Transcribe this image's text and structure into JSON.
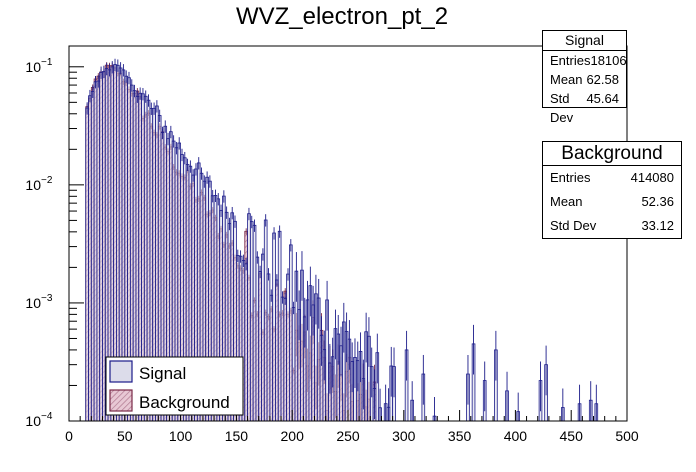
{
  "chart_data": {
    "type": "histogram",
    "title": "WVZ_electron_pt_2",
    "xlabel": "",
    "ylabel": "",
    "xlim": [
      0,
      500
    ],
    "ylim": [
      0.0001,
      0.15
    ],
    "yscale": "log",
    "x_ticks": [
      0,
      50,
      100,
      150,
      200,
      250,
      300,
      350,
      400,
      450,
      500
    ],
    "x_tick_labels": [
      "0",
      "50",
      "100",
      "150",
      "200",
      "250",
      "300",
      "350",
      "400",
      "450",
      "500"
    ],
    "y_ticks": [
      0.0001,
      0.001,
      0.01,
      0.1
    ],
    "y_tick_labels": [
      {
        "base": "10",
        "exp": "−4"
      },
      {
        "base": "10",
        "exp": "−3"
      },
      {
        "base": "10",
        "exp": "−2"
      },
      {
        "base": "10",
        "exp": "−1"
      }
    ],
    "bin_width": 2.5,
    "series": [
      {
        "name": "Signal",
        "line_color": "#1c1c8a",
        "fill_color": "#dcdcea",
        "anchors": [
          [
            15,
            0
          ],
          [
            16.25,
            0.045
          ],
          [
            20,
            0.06
          ],
          [
            25,
            0.075
          ],
          [
            30,
            0.09
          ],
          [
            35,
            0.1
          ],
          [
            40,
            0.103
          ],
          [
            45,
            0.097
          ],
          [
            50,
            0.085
          ],
          [
            60,
            0.065
          ],
          [
            70,
            0.05
          ],
          [
            80,
            0.037
          ],
          [
            90,
            0.027
          ],
          [
            100,
            0.02
          ],
          [
            110,
            0.015
          ],
          [
            120,
            0.011
          ],
          [
            130,
            0.0085
          ],
          [
            140,
            0.0065
          ],
          [
            150,
            0.005
          ],
          [
            160,
            0.0038
          ],
          [
            170,
            0.003
          ],
          [
            180,
            0.0023
          ],
          [
            190,
            0.0018
          ],
          [
            200,
            0.0014
          ],
          [
            210,
            0.0011
          ],
          [
            220,
            0.0009
          ],
          [
            230,
            0.0007
          ],
          [
            240,
            0.0006
          ],
          [
            250,
            0.00045
          ],
          [
            260,
            0.00035
          ],
          [
            270,
            0.00025
          ],
          [
            280,
            0.00018
          ],
          [
            290,
            0.00014
          ],
          [
            300,
            0.0001
          ]
        ],
        "sparse_bins": [
          [
            302.5,
            0.0004
          ],
          [
            307.5,
            0.00015
          ],
          [
            317.5,
            0.00025
          ],
          [
            327.5,
            0.00011
          ],
          [
            357.5,
            0.00025
          ],
          [
            362.5,
            0.00045
          ],
          [
            372.5,
            0.00022
          ],
          [
            382.5,
            0.0004
          ],
          [
            392.5,
            0.00018
          ],
          [
            402.5,
            0.00012
          ],
          [
            422.5,
            0.00022
          ],
          [
            427.5,
            0.0003
          ],
          [
            442.5,
            0.00013
          ],
          [
            457.5,
            0.00014
          ],
          [
            467.5,
            0.00015
          ],
          [
            472.5,
            0.00014
          ]
        ]
      },
      {
        "name": "Background",
        "line_color": "#7a2a48",
        "fill_color": "#cfa0b2",
        "anchors": [
          [
            15,
            0
          ],
          [
            16.25,
            0.045
          ],
          [
            20,
            0.062
          ],
          [
            25,
            0.078
          ],
          [
            30,
            0.092
          ],
          [
            35,
            0.1
          ],
          [
            40,
            0.097
          ],
          [
            45,
            0.088
          ],
          [
            50,
            0.075
          ],
          [
            60,
            0.055
          ],
          [
            70,
            0.038
          ],
          [
            80,
            0.027
          ],
          [
            90,
            0.019
          ],
          [
            100,
            0.013
          ],
          [
            110,
            0.0095
          ],
          [
            120,
            0.007
          ],
          [
            130,
            0.005
          ],
          [
            140,
            0.0036
          ],
          [
            150,
            0.0026
          ],
          [
            160,
            0.0019
          ],
          [
            170,
            0.0014
          ],
          [
            180,
            0.00105
          ],
          [
            190,
            0.0008
          ],
          [
            200,
            0.0006
          ],
          [
            210,
            0.00045
          ],
          [
            220,
            0.00035
          ],
          [
            230,
            0.00028
          ],
          [
            240,
            0.0002
          ],
          [
            250,
            0.00016
          ],
          [
            260,
            0.00013
          ],
          [
            270,
            0.00011
          ],
          [
            280,
            0.0001
          ]
        ]
      }
    ],
    "stats": [
      {
        "title": "Signal",
        "rows": [
          {
            "label": "Entries",
            "value": "18106"
          },
          {
            "label": "Mean",
            "value": "62.58"
          },
          {
            "label": "Std Dev",
            "value": "45.64"
          }
        ]
      },
      {
        "title": "Background",
        "rows": [
          {
            "label": "Entries",
            "value": "414080"
          },
          {
            "label": "Mean",
            "value": "52.36"
          },
          {
            "label": "Std Dev",
            "value": "33.12"
          }
        ]
      }
    ],
    "legend": {
      "placement": "bottom-left",
      "entries": [
        {
          "label": "Signal",
          "series": 0
        },
        {
          "label": "Background",
          "series": 1
        }
      ]
    }
  }
}
